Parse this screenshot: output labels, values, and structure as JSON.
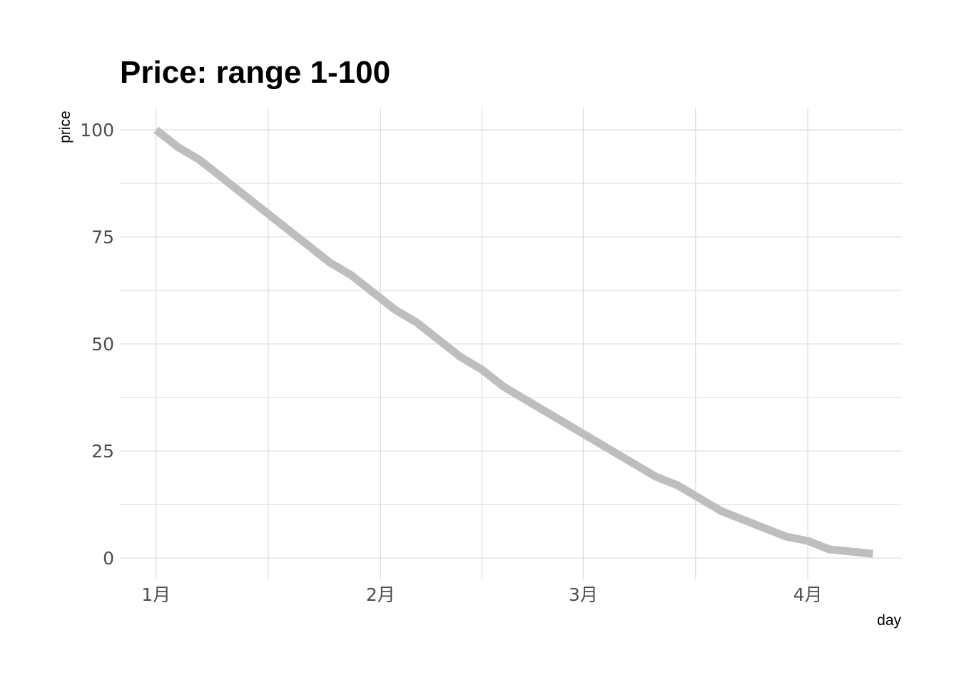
{
  "chart_data": {
    "type": "line",
    "title": "Price: range 1-100",
    "xlabel": "day",
    "ylabel": "price",
    "x_ticks": [
      {
        "label": "1月",
        "date": "2023-01-01"
      },
      {
        "label": "2月",
        "date": "2023-02-01"
      },
      {
        "label": "3月",
        "date": "2023-03-01"
      },
      {
        "label": "4月",
        "date": "2023-04-01"
      }
    ],
    "y_ticks": [
      0,
      25,
      50,
      75,
      100
    ],
    "xlim": [
      "2022-12-27",
      "2023-04-14"
    ],
    "ylim": [
      -5,
      105
    ],
    "grid": true,
    "legend": "none",
    "series_color": "#bebebe",
    "series": [
      {
        "x": [
          "2023-01-01",
          "2023-01-04",
          "2023-01-07",
          "2023-01-10",
          "2023-01-13",
          "2023-01-16",
          "2023-01-19",
          "2023-01-22",
          "2023-01-25",
          "2023-01-28",
          "2023-01-31",
          "2023-02-03",
          "2023-02-06",
          "2023-02-09",
          "2023-02-12",
          "2023-02-15",
          "2023-02-18",
          "2023-02-21",
          "2023-02-24",
          "2023-02-27",
          "2023-03-02",
          "2023-03-05",
          "2023-03-08",
          "2023-03-11",
          "2023-03-14",
          "2023-03-17",
          "2023-03-20",
          "2023-03-23",
          "2023-03-26",
          "2023-03-29",
          "2023-04-01",
          "2023-04-04",
          "2023-04-07",
          "2023-04-10"
        ],
        "values": [
          100,
          96,
          93,
          89,
          85,
          81,
          77,
          73,
          69,
          66,
          62,
          58,
          55,
          51,
          47,
          44,
          40,
          37,
          34,
          31,
          28,
          25,
          22,
          19,
          17,
          14,
          11,
          9,
          7,
          5,
          4,
          2,
          1.5,
          1
        ]
      }
    ]
  }
}
